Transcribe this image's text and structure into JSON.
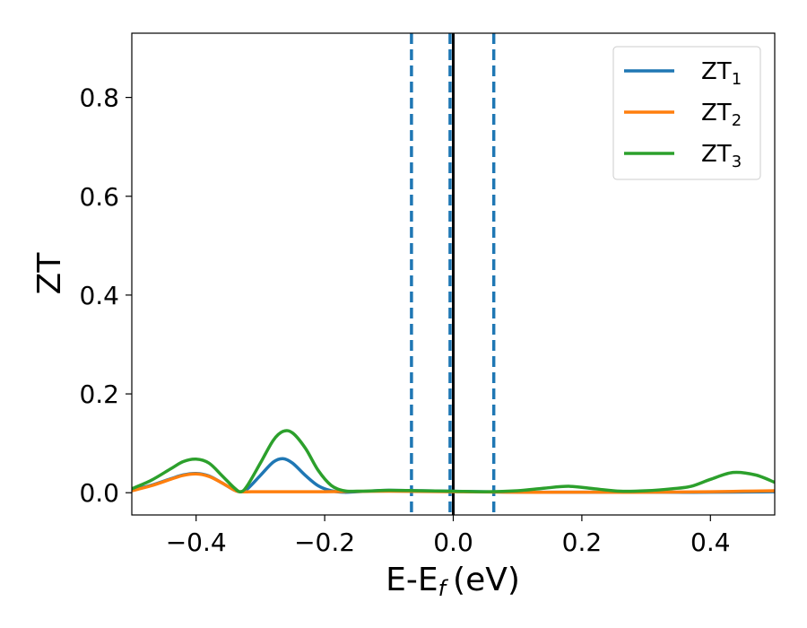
{
  "chart_data": {
    "type": "line",
    "title": "",
    "xlabel": "E-E",
    "xlabel_sub": "f",
    "xlabel_unit": "(eV)",
    "ylabel": "ZT",
    "xlim": [
      -0.5,
      0.5
    ],
    "ylim": [
      -0.045,
      0.93
    ],
    "xticks": [
      -0.4,
      -0.2,
      0.0,
      0.2,
      0.4
    ],
    "xtick_labels": [
      "−0.4",
      "−0.2",
      "0.0",
      "0.2",
      "0.4"
    ],
    "yticks": [
      0.0,
      0.2,
      0.4,
      0.6,
      0.8
    ],
    "ytick_labels": [
      "0.0",
      "0.2",
      "0.4",
      "0.6",
      "0.8"
    ],
    "grid": false,
    "legend_position": "top-right",
    "vlines": [
      {
        "x": -0.065,
        "style": "dashed",
        "color": "#1f77b4"
      },
      {
        "x": -0.005,
        "style": "dashed",
        "color": "#1f77b4"
      },
      {
        "x": 0.063,
        "style": "dashed",
        "color": "#1f77b4"
      },
      {
        "x": 0.0,
        "style": "solid",
        "color": "#000000"
      }
    ],
    "series": [
      {
        "name": "ZT",
        "name_sub": "1",
        "color": "#1f77b4",
        "x": [
          -0.5,
          -0.47,
          -0.44,
          -0.42,
          -0.4,
          -0.38,
          -0.36,
          -0.34,
          -0.33,
          -0.32,
          -0.3,
          -0.28,
          -0.265,
          -0.25,
          -0.23,
          -0.21,
          -0.19,
          -0.17,
          -0.15,
          -0.12,
          -0.1,
          -0.05,
          0.0,
          0.05,
          0.1,
          0.2,
          0.3,
          0.4,
          0.5
        ],
        "y": [
          0.005,
          0.015,
          0.028,
          0.036,
          0.039,
          0.034,
          0.02,
          0.005,
          0.002,
          0.008,
          0.035,
          0.062,
          0.069,
          0.06,
          0.035,
          0.014,
          0.004,
          0.001,
          0.002,
          0.004,
          0.005,
          0.004,
          0.003,
          0.002,
          0.001,
          0.001,
          0.001,
          0.001,
          0.002
        ]
      },
      {
        "name": "ZT",
        "name_sub": "2",
        "color": "#ff7f0e",
        "x": [
          -0.5,
          -0.47,
          -0.44,
          -0.42,
          -0.4,
          -0.38,
          -0.36,
          -0.34,
          -0.33,
          -0.3,
          -0.25,
          -0.2,
          -0.1,
          0.0,
          0.1,
          0.2,
          0.3,
          0.4,
          0.45,
          0.5
        ],
        "y": [
          0.004,
          0.014,
          0.027,
          0.035,
          0.038,
          0.033,
          0.02,
          0.005,
          0.002,
          0.002,
          0.002,
          0.002,
          0.003,
          0.002,
          0.001,
          0.001,
          0.001,
          0.002,
          0.003,
          0.004
        ]
      },
      {
        "name": "ZT",
        "name_sub": "3",
        "color": "#2ca02c",
        "x": [
          -0.5,
          -0.47,
          -0.44,
          -0.42,
          -0.4,
          -0.38,
          -0.36,
          -0.34,
          -0.33,
          -0.32,
          -0.3,
          -0.28,
          -0.265,
          -0.25,
          -0.23,
          -0.21,
          -0.19,
          -0.17,
          -0.15,
          -0.12,
          -0.1,
          -0.05,
          0.0,
          0.05,
          0.1,
          0.14,
          0.18,
          0.22,
          0.26,
          0.3,
          0.34,
          0.37,
          0.4,
          0.435,
          0.47,
          0.5
        ],
        "y": [
          0.008,
          0.025,
          0.048,
          0.063,
          0.068,
          0.06,
          0.035,
          0.009,
          0.002,
          0.015,
          0.06,
          0.106,
          0.124,
          0.121,
          0.09,
          0.045,
          0.015,
          0.004,
          0.003,
          0.004,
          0.005,
          0.004,
          0.003,
          0.002,
          0.004,
          0.009,
          0.013,
          0.008,
          0.003,
          0.004,
          0.008,
          0.013,
          0.027,
          0.041,
          0.036,
          0.021
        ]
      }
    ]
  }
}
